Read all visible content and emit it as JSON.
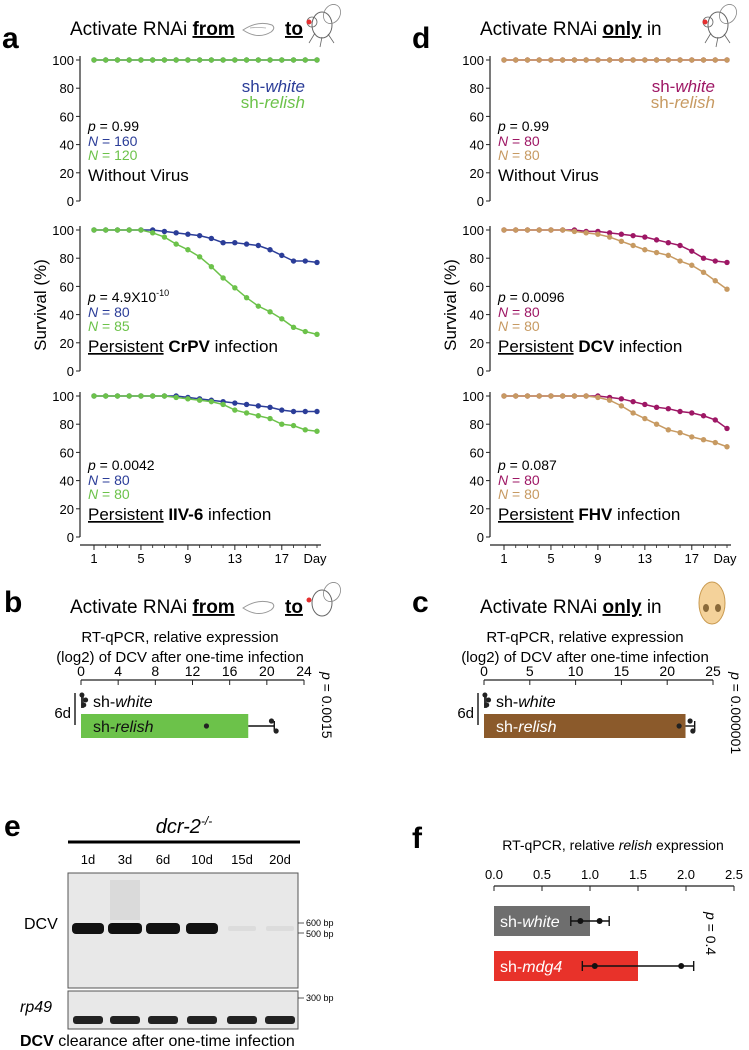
{
  "panels": {
    "a": {
      "letter": "a",
      "header": {
        "prefix": "Activate RNAi ",
        "from": "from",
        "to": "to"
      },
      "ylabel": "Survival (%)",
      "xticks": [
        "1",
        "5",
        "9",
        "13",
        "17",
        "Day"
      ],
      "yticks": [
        "0",
        "20",
        "40",
        "60",
        "80",
        "100"
      ],
      "legend": {
        "s1": "sh-",
        "s1i": "white",
        "s2": "sh-",
        "s2i": "relish"
      },
      "subplots": [
        {
          "p": "= 0.99",
          "n1": "= 160",
          "n2": "= 120",
          "title_pre": "Without Virus",
          "title_bold": "",
          "title_post": ""
        },
        {
          "p": "= 4.9X10",
          "pexp": "-10",
          "n1": "= 80",
          "n2": "= 85",
          "title_pre": "Persistent",
          "title_bold": "CrPV",
          "title_post": " infection"
        },
        {
          "p": "= 0.0042",
          "n1": "= 80",
          "n2": "= 80",
          "title_pre": "Persistent",
          "title_bold": "IIV-6",
          "title_post": " infection"
        }
      ]
    },
    "d": {
      "letter": "d",
      "header": {
        "prefix": "Activate RNAi ",
        "only": "only",
        "in": " in"
      },
      "xticks": [
        "1",
        "5",
        "9",
        "13",
        "17",
        "Day"
      ],
      "yticks": [
        "0",
        "20",
        "40",
        "60",
        "80",
        "100"
      ],
      "legend": {
        "s1": "sh-",
        "s1i": "white",
        "s2": "sh-",
        "s2i": "relish"
      },
      "subplots": [
        {
          "p": "= 0.99",
          "n1": "= 80",
          "n2": "= 80",
          "title_pre": "Without Virus",
          "title_bold": "",
          "title_post": ""
        },
        {
          "p": "= 0.0096",
          "n1": "= 80",
          "n2": "= 80",
          "title_pre": "Persistent",
          "title_bold": "DCV",
          "title_post": " infection"
        },
        {
          "p": "= 0.087",
          "n1": "= 80",
          "n2": "= 80",
          "title_pre": "Persistent",
          "title_bold": "FHV",
          "title_post": " infection"
        }
      ]
    },
    "b": {
      "letter": "b",
      "header": {
        "prefix": "Activate RNAi ",
        "from": "from",
        "to": "to"
      },
      "axis_title_1": "RT-qPCR, relative expression",
      "axis_title_2": "(log2) of DCV after one-time infection",
      "xticks": [
        "0",
        "4",
        "8",
        "12",
        "16",
        "20",
        "24"
      ],
      "group": "6d",
      "bar1_label": "sh-",
      "bar1_italic": "white",
      "bar2_label": "sh-",
      "bar2_italic": "relish",
      "pvalue": "= 0.0015"
    },
    "c": {
      "letter": "c",
      "header": {
        "prefix": "Activate RNAi ",
        "only": "only",
        "in": " in"
      },
      "axis_title_1": "RT-qPCR, relative expression",
      "axis_title_2": "(log2) of DCV after one-time infection",
      "xticks": [
        "0",
        "5",
        "10",
        "15",
        "20",
        "25"
      ],
      "group": "6d",
      "bar1_label": "sh-",
      "bar1_italic": "white",
      "bar2_label": "sh-",
      "bar2_italic": "relish",
      "pvalue": "= 0.000001"
    },
    "e": {
      "letter": "e",
      "genotype": "dcr-2",
      "genotype_sup": "-/-",
      "lanes": [
        "1d",
        "3d",
        "6d",
        "10d",
        "15d",
        "20d"
      ],
      "row1": "DCV",
      "row2": "rp49",
      "ladder": [
        "600 bp",
        "500 bp",
        "300 bp"
      ],
      "caption_bold": "DCV",
      "caption_rest": " clearance after one-time infection"
    },
    "f": {
      "letter": "f",
      "axis_title_pre": "RT-qPCR, relative ",
      "axis_title_italic": "relish",
      "axis_title_post": " expression",
      "xticks": [
        "0.0",
        "0.5",
        "1.0",
        "1.5",
        "2.0",
        "2.5"
      ],
      "bar1_label": "sh-",
      "bar1_italic": "white",
      "bar2_label": "sh-",
      "bar2_italic": "mdg4",
      "pvalue": "= 0.4"
    }
  },
  "colors": {
    "blue": "#2b3d98",
    "green": "#6cc24a",
    "magenta": "#9e1765",
    "tan": "#c79a62",
    "brown": "#8b5a2b",
    "gray": "#6e6e6e",
    "red": "#e8322a"
  },
  "chart_data": [
    {
      "type": "line",
      "panel": "a",
      "x": [
        1,
        2,
        3,
        4,
        5,
        6,
        7,
        8,
        9,
        10,
        11,
        12,
        13,
        14,
        15,
        16,
        17,
        18,
        19,
        20
      ],
      "ylim": [
        0,
        100
      ],
      "subplots": [
        {
          "series": [
            {
              "name": "sh-white",
              "values": [
                100,
                100,
                100,
                100,
                100,
                100,
                100,
                100,
                100,
                100,
                100,
                100,
                100,
                100,
                100,
                100,
                100,
                100,
                100,
                100
              ]
            },
            {
              "name": "sh-relish",
              "values": [
                100,
                100,
                100,
                100,
                100,
                100,
                100,
                100,
                100,
                100,
                100,
                100,
                100,
                100,
                100,
                100,
                100,
                100,
                100,
                100
              ]
            }
          ]
        },
        {
          "series": [
            {
              "name": "sh-white",
              "values": [
                100,
                100,
                100,
                100,
                100,
                100,
                99,
                98,
                97,
                96,
                94,
                91,
                91,
                90,
                89,
                86,
                82,
                78,
                78,
                77
              ]
            },
            {
              "name": "sh-relish",
              "values": [
                100,
                100,
                100,
                100,
                100,
                98,
                95,
                90,
                86,
                81,
                74,
                66,
                59,
                52,
                46,
                42,
                37,
                31,
                28,
                26
              ]
            }
          ]
        },
        {
          "series": [
            {
              "name": "sh-white",
              "values": [
                100,
                100,
                100,
                100,
                100,
                100,
                100,
                100,
                99,
                98,
                97,
                96,
                95,
                94,
                93,
                92,
                90,
                89,
                89,
                89
              ]
            },
            {
              "name": "sh-relish",
              "values": [
                100,
                100,
                100,
                100,
                100,
                100,
                100,
                99,
                98,
                97,
                96,
                94,
                90,
                88,
                86,
                84,
                80,
                79,
                76,
                75
              ]
            }
          ]
        }
      ]
    },
    {
      "type": "line",
      "panel": "d",
      "x": [
        1,
        2,
        3,
        4,
        5,
        6,
        7,
        8,
        9,
        10,
        11,
        12,
        13,
        14,
        15,
        16,
        17,
        18,
        19,
        20
      ],
      "ylim": [
        0,
        100
      ],
      "subplots": [
        {
          "series": [
            {
              "name": "sh-white",
              "values": [
                100,
                100,
                100,
                100,
                100,
                100,
                100,
                100,
                100,
                100,
                100,
                100,
                100,
                100,
                100,
                100,
                100,
                100,
                100,
                100
              ]
            },
            {
              "name": "sh-relish",
              "values": [
                100,
                100,
                100,
                100,
                100,
                100,
                100,
                100,
                100,
                100,
                100,
                100,
                100,
                100,
                100,
                100,
                100,
                100,
                100,
                100
              ]
            }
          ]
        },
        {
          "series": [
            {
              "name": "sh-white",
              "values": [
                100,
                100,
                100,
                100,
                100,
                100,
                100,
                99,
                99,
                98,
                97,
                96,
                95,
                93,
                91,
                89,
                85,
                80,
                78,
                77
              ]
            },
            {
              "name": "sh-relish",
              "values": [
                100,
                100,
                100,
                100,
                100,
                100,
                99,
                98,
                97,
                95,
                92,
                89,
                86,
                84,
                82,
                78,
                75,
                70,
                64,
                58
              ]
            }
          ]
        },
        {
          "series": [
            {
              "name": "sh-white",
              "values": [
                100,
                100,
                100,
                100,
                100,
                100,
                100,
                100,
                100,
                99,
                98,
                96,
                94,
                92,
                91,
                89,
                88,
                86,
                83,
                77
              ]
            },
            {
              "name": "sh-relish",
              "values": [
                100,
                100,
                100,
                100,
                100,
                100,
                100,
                100,
                99,
                97,
                93,
                88,
                84,
                80,
                76,
                74,
                71,
                69,
                67,
                64
              ]
            }
          ]
        }
      ]
    },
    {
      "type": "bar",
      "panel": "b",
      "categories": [
        "sh-white",
        "sh-relish"
      ],
      "values": [
        0.3,
        18
      ],
      "errors": [
        0.3,
        2.8
      ],
      "points": [
        [
          0.1,
          0.5,
          0.3
        ],
        [
          13.5,
          20.5,
          21
        ]
      ],
      "xlim": [
        0,
        24
      ]
    },
    {
      "type": "bar",
      "panel": "c",
      "categories": [
        "sh-white",
        "sh-relish"
      ],
      "values": [
        0.3,
        22
      ],
      "errors": [
        0.3,
        1.0
      ],
      "points": [
        [
          0.1,
          0.5,
          0.3
        ],
        [
          21.3,
          22.5,
          22.8
        ]
      ],
      "xlim": [
        0,
        25
      ]
    },
    {
      "type": "bar",
      "panel": "f",
      "categories": [
        "sh-white",
        "sh-mdg4"
      ],
      "values": [
        1.0,
        1.5
      ],
      "errors": [
        0.2,
        0.58
      ],
      "points": [
        [
          0.9,
          1.1
        ],
        [
          1.05,
          1.95
        ]
      ],
      "xlim": [
        0,
        2.5
      ]
    }
  ]
}
